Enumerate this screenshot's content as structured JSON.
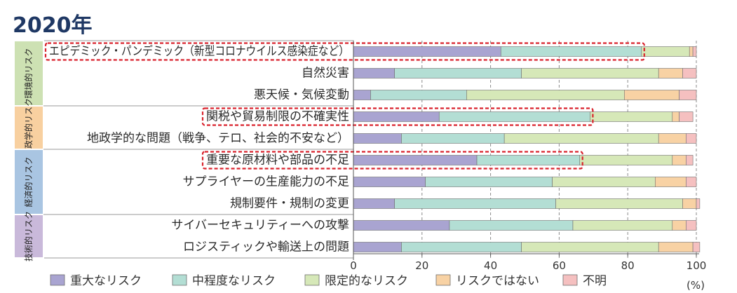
{
  "chart_data": {
    "type": "bar",
    "orientation": "horizontal",
    "stacked": true,
    "title": "2020年",
    "unit": "(%)",
    "xlim": [
      0,
      100
    ],
    "xticks": [
      0,
      20,
      40,
      60,
      80,
      100
    ],
    "grid": "vertical-dashed",
    "legend_position": "bottom",
    "series": [
      {
        "name": "重大なリスク",
        "color": "#a9a4d1"
      },
      {
        "name": "中程度なリスク",
        "color": "#b3ded4"
      },
      {
        "name": "限定的なリスク",
        "color": "#d6e8b8"
      },
      {
        "name": "リスクではない",
        "color": "#f8d2a4"
      },
      {
        "name": "不明",
        "color": "#f5c0c0"
      }
    ],
    "groups": [
      {
        "label": "環境的リスク",
        "color": "#cde1b3",
        "rows": [
          0,
          1,
          2
        ]
      },
      {
        "label": "地政学的リスク",
        "color": "#f8d0a0",
        "rows": [
          3,
          4
        ]
      },
      {
        "label": "経済的リスク",
        "color": "#a9c5e2",
        "rows": [
          5,
          6,
          7
        ]
      },
      {
        "label": "技術的リスク",
        "color": "#c9b9da",
        "rows": [
          8,
          9
        ]
      }
    ],
    "rows": [
      {
        "label": "エピデミック・パンデミック（新型コロナウイルス感染症など）",
        "values": [
          43,
          41,
          14,
          1,
          1
        ],
        "highlighted": true
      },
      {
        "label": "自然災害",
        "values": [
          12,
          37,
          40,
          7,
          4
        ],
        "highlighted": false
      },
      {
        "label": "悪天候・気候変動",
        "values": [
          5,
          28,
          46,
          16,
          5
        ],
        "highlighted": false
      },
      {
        "label": "関税や貿易制限の不確実性",
        "values": [
          25,
          44,
          24,
          2,
          4
        ],
        "highlighted": true
      },
      {
        "label": "地政学的な問題（戦争、テロ、社会的不安など）",
        "values": [
          14,
          30,
          45,
          8,
          3
        ],
        "highlighted": false
      },
      {
        "label": "重要な原材料や部品の不足",
        "values": [
          36,
          30,
          27,
          4,
          2
        ],
        "highlighted": true
      },
      {
        "label": "サプライヤーの生産能力の不足",
        "values": [
          21,
          37,
          30,
          9,
          3
        ],
        "highlighted": false
      },
      {
        "label": "規制要件・規制の変更",
        "values": [
          12,
          47,
          37,
          4,
          1
        ],
        "highlighted": false
      },
      {
        "label": "サイバーセキュリティーへの攻撃",
        "values": [
          28,
          36,
          29,
          4,
          3
        ],
        "highlighted": false
      },
      {
        "label": "ロジスティックや輸送上の問題",
        "values": [
          14,
          35,
          40,
          10,
          2
        ],
        "highlighted": false
      }
    ]
  }
}
